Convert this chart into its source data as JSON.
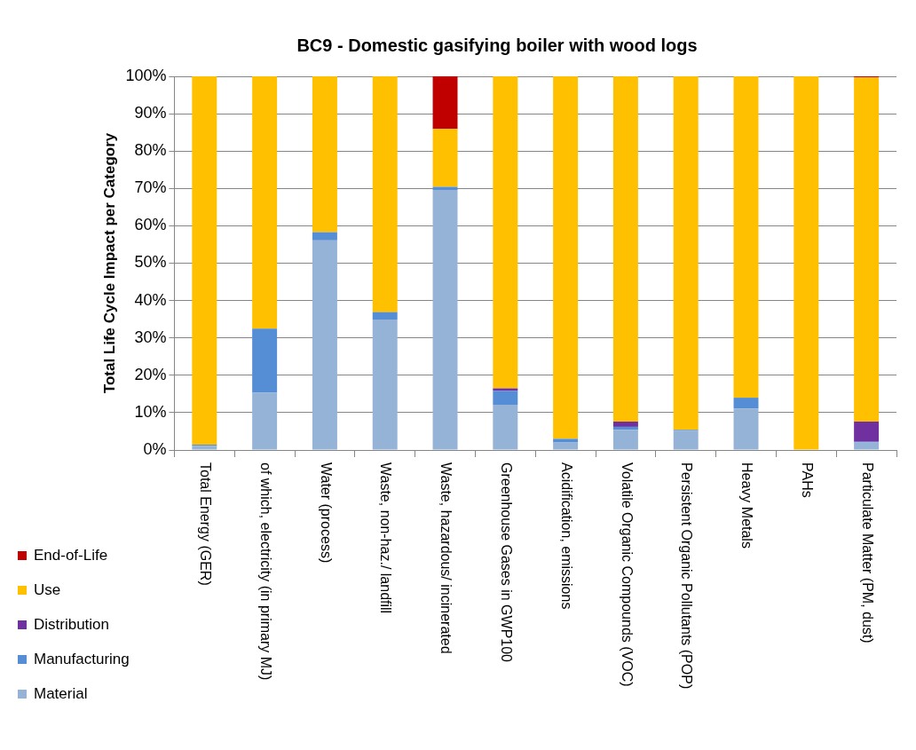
{
  "chart_data": {
    "type": "bar",
    "title": "BC9 - Domestic gasifying boiler with wood logs",
    "ylabel": "Total Life Cycle Impact per Category",
    "stacked": true,
    "categories": [
      "Total Energy (GER)",
      "of which, electricity (in primary MJ)",
      "Water (process)",
      "Waste, non-haz./ landfill",
      "Waste, hazardous/ incinerated",
      "Greenhouse Gases in GWP100",
      "Acidification, emissions",
      "Volatile Organic Compounds (VOC)",
      "Persistent Organic Pollutants (POP)",
      "Heavy Metals",
      "PAHs",
      "Particulate Matter (PM, dust)"
    ],
    "series": [
      {
        "name": "Material",
        "color": "#95b3d7",
        "values": [
          1.1,
          15.3,
          56.1,
          34.9,
          69.6,
          12.1,
          2.0,
          5.4,
          5.2,
          11.1,
          0,
          2.0
        ]
      },
      {
        "name": "Manufacturing",
        "color": "#558ed5",
        "values": [
          0.3,
          17.2,
          2.2,
          2.0,
          0.8,
          3.7,
          1.0,
          0.8,
          0.2,
          2.9,
          0,
          0.2
        ]
      },
      {
        "name": "Distribution",
        "color": "#7030a0",
        "values": [
          0,
          0,
          0,
          0,
          0,
          0.7,
          0,
          1.4,
          0,
          0,
          0,
          5.4
        ]
      },
      {
        "name": "Use",
        "color": "#ffc000",
        "values": [
          98.6,
          67.5,
          41.7,
          63.1,
          15.5,
          83.5,
          97.0,
          92.4,
          94.6,
          86.0,
          100,
          92.1
        ]
      },
      {
        "name": "End-of-Life",
        "color": "#c00000",
        "values": [
          0,
          0,
          0,
          0,
          14.1,
          0,
          0,
          0,
          0,
          0,
          0,
          0.3
        ]
      }
    ],
    "ylim": [
      0,
      100
    ],
    "yticks": [
      {
        "value": 0,
        "label": "0%"
      },
      {
        "value": 10,
        "label": "10%"
      },
      {
        "value": 20,
        "label": "20%"
      },
      {
        "value": 30,
        "label": "30%"
      },
      {
        "value": 40,
        "label": "40%"
      },
      {
        "value": 50,
        "label": "50%"
      },
      {
        "value": 60,
        "label": "60%"
      },
      {
        "value": 70,
        "label": "70%"
      },
      {
        "value": 80,
        "label": "80%"
      },
      {
        "value": 90,
        "label": "90%"
      },
      {
        "value": 100,
        "label": "100%"
      }
    ],
    "grid": "y",
    "legend": "bottom left"
  }
}
